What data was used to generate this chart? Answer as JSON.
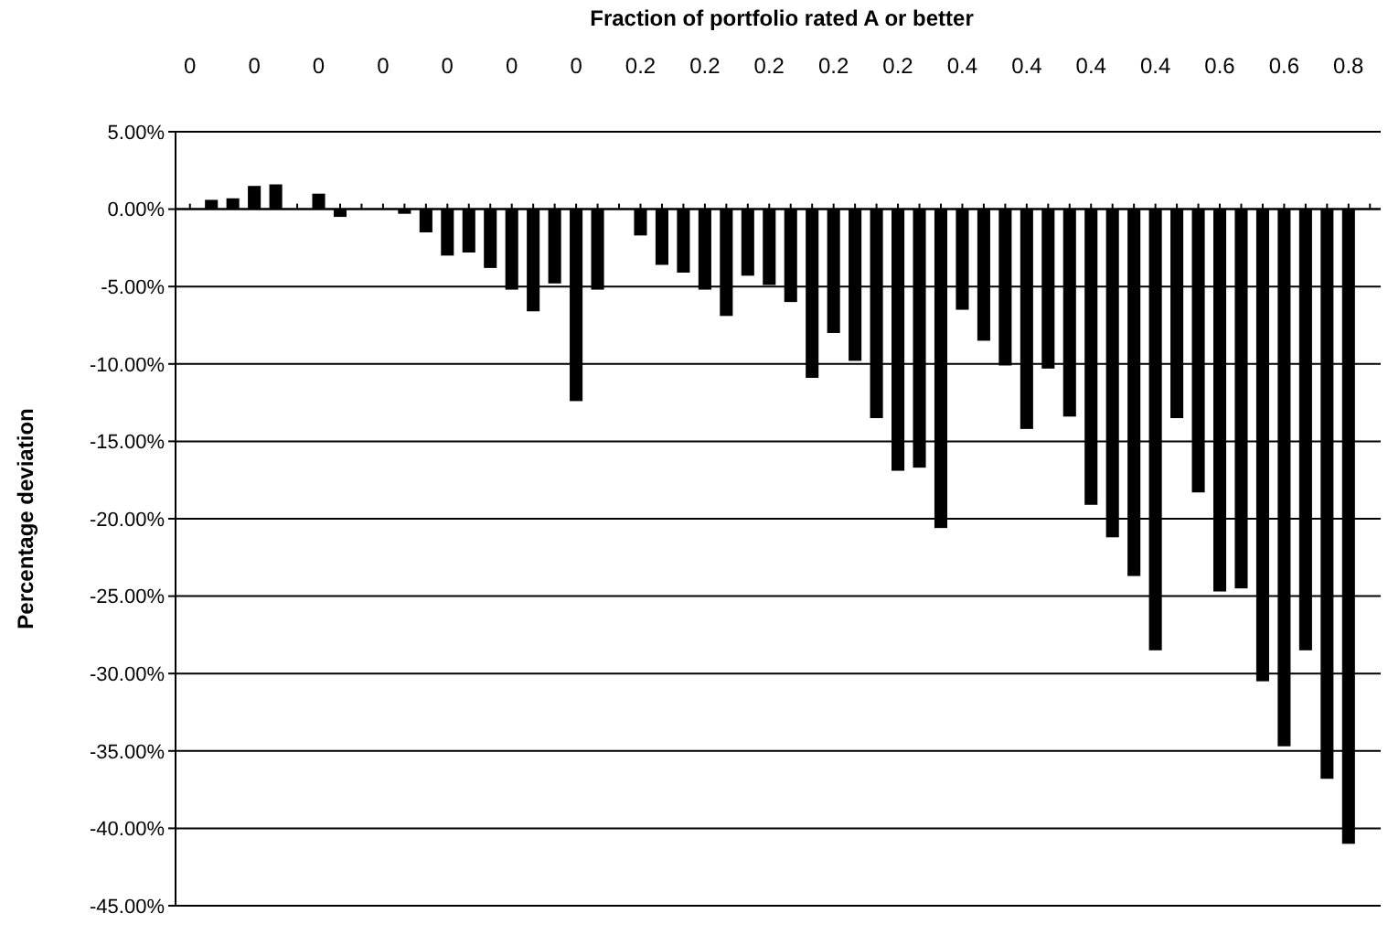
{
  "chart_data": {
    "type": "bar",
    "xlabel": "Fraction of portfolio rated A or better",
    "ylabel": "Percentage deviation",
    "categories": [
      "0",
      null,
      null,
      "0",
      null,
      null,
      "0",
      null,
      null,
      "0",
      null,
      null,
      "0",
      null,
      null,
      "0",
      null,
      null,
      "0",
      null,
      null,
      "0.2",
      null,
      null,
      "0.2",
      null,
      null,
      "0.2",
      null,
      null,
      "0.2",
      null,
      null,
      "0.2",
      null,
      null,
      "0.4",
      null,
      null,
      "0.4",
      null,
      null,
      "0.4",
      null,
      null,
      "0.4",
      null,
      null,
      "0.6",
      null,
      null,
      "0.6",
      null,
      null,
      "0.8",
      null
    ],
    "values": [
      null,
      0.6,
      0.7,
      1.5,
      1.6,
      null,
      1.0,
      -0.5,
      null,
      null,
      -0.3,
      -1.5,
      -3.0,
      -2.8,
      -3.8,
      -5.2,
      -6.6,
      -4.8,
      -12.4,
      -5.2,
      null,
      -1.7,
      -3.6,
      -4.1,
      -5.2,
      -6.9,
      -4.3,
      -4.9,
      -6.0,
      -10.9,
      -8.0,
      -9.8,
      -13.5,
      -16.9,
      -16.7,
      -20.6,
      -6.5,
      -8.5,
      -10.1,
      -14.2,
      -10.3,
      -13.4,
      -19.1,
      -21.2,
      -23.7,
      -28.5,
      -13.5,
      -18.3,
      -24.7,
      -24.5,
      -30.5,
      -34.7,
      -28.5,
      -36.8,
      -41.0,
      null
    ],
    "color": "#000000",
    "ylim": [
      -45,
      5
    ],
    "yticks": [
      {
        "value": 5,
        "label": "5.00%"
      },
      {
        "value": 0,
        "label": "0.00%"
      },
      {
        "value": -5,
        "label": "-5.00%"
      },
      {
        "value": -10,
        "label": "-10.00%"
      },
      {
        "value": -15,
        "label": "-15.00%"
      },
      {
        "value": -20,
        "label": "-20.00%"
      },
      {
        "value": -25,
        "label": "-25.00%"
      },
      {
        "value": -30,
        "label": "-30.00%"
      },
      {
        "value": -35,
        "label": "-35.00%"
      },
      {
        "value": -40,
        "label": "-40.00%"
      },
      {
        "value": -45,
        "label": "-45.00%"
      }
    ],
    "grid": "y"
  }
}
